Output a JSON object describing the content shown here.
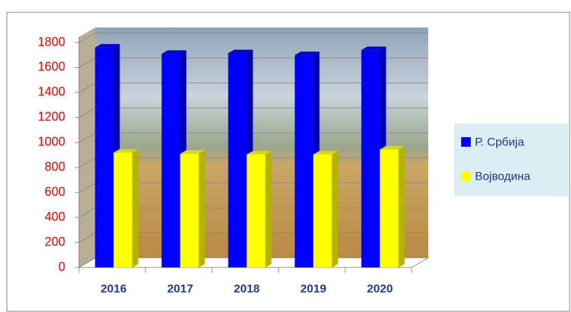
{
  "chart_data": {
    "type": "bar3d",
    "categories": [
      "2016",
      "2017",
      "2018",
      "2019",
      "2020"
    ],
    "series": [
      {
        "name": "Р. Србија",
        "color": "#0000ff",
        "values": [
          1760,
          1710,
          1715,
          1700,
          1740
        ]
      },
      {
        "name": "Војводина",
        "color": "#ffff00",
        "values": [
          920,
          910,
          905,
          905,
          945
        ]
      }
    ],
    "ylim": [
      0,
      1800
    ],
    "yticks": [
      0,
      200,
      400,
      600,
      800,
      1000,
      1200,
      1400,
      1600,
      1800
    ],
    "grid": true,
    "legend": "right"
  }
}
